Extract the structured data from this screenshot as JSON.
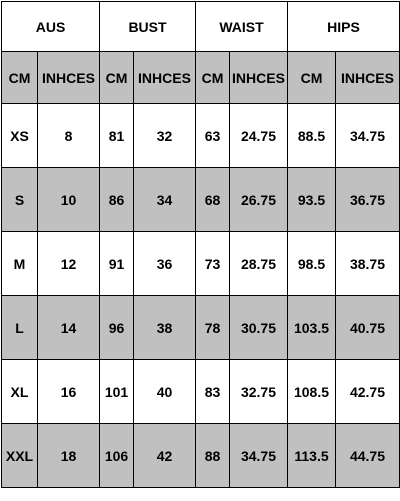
{
  "table": {
    "groups": [
      "AUS",
      "BUST",
      "WAIST",
      "HIPS"
    ],
    "subheaders": [
      "CM",
      "INHCES",
      "CM",
      "INHCES",
      "CM",
      "INHCES",
      "CM",
      "INHCES"
    ],
    "rows": [
      [
        "XS",
        "8",
        "81",
        "32",
        "63",
        "24.75",
        "88.5",
        "34.75"
      ],
      [
        "S",
        "10",
        "86",
        "34",
        "68",
        "26.75",
        "93.5",
        "36.75"
      ],
      [
        "M",
        "12",
        "91",
        "36",
        "73",
        "28.75",
        "98.5",
        "38.75"
      ],
      [
        "L",
        "14",
        "96",
        "38",
        "78",
        "30.75",
        "103.5",
        "40.75"
      ],
      [
        "XL",
        "16",
        "101",
        "40",
        "83",
        "32.75",
        "108.5",
        "42.75"
      ],
      [
        "XXL",
        "18",
        "106",
        "42",
        "88",
        "34.75",
        "113.5",
        "44.75"
      ]
    ],
    "colors": {
      "shaded_row": "#c0c0c0",
      "plain_row": "#ffffff",
      "border": "#000000"
    }
  }
}
